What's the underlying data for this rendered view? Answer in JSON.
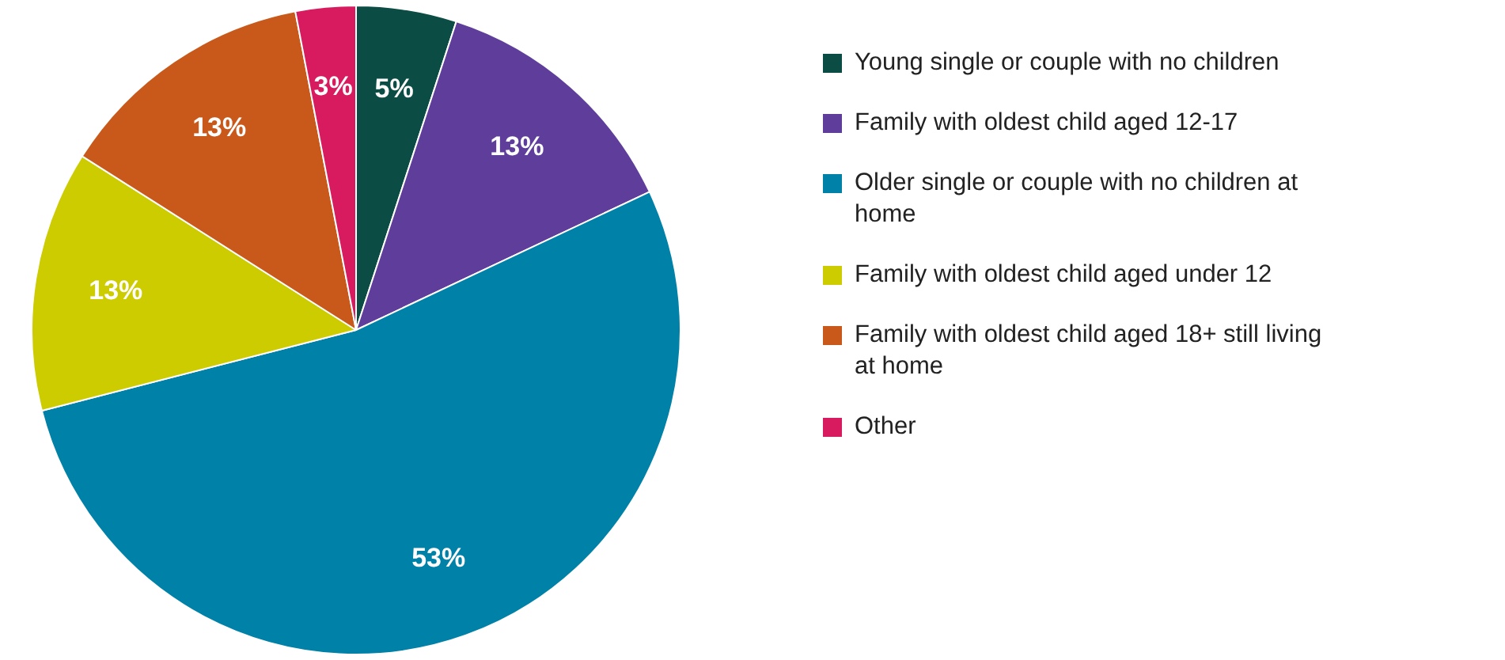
{
  "chart_data": {
    "type": "pie",
    "categories": [
      "Young single or couple with no children",
      "Family with oldest child aged 12-17",
      "Older single or couple with no children at home",
      "Family with oldest child aged under 12",
      "Family with oldest child aged 18+ still living at home",
      "Other"
    ],
    "values": [
      5,
      13,
      53,
      13,
      13,
      3
    ],
    "colors": [
      "#0b4d45",
      "#5e3d9b",
      "#0081a7",
      "#cccc00",
      "#c9591a",
      "#d81b5e"
    ],
    "value_labels": [
      "5%",
      "13%",
      "53%",
      "13%",
      "13%",
      "3%"
    ],
    "legend": "right"
  }
}
